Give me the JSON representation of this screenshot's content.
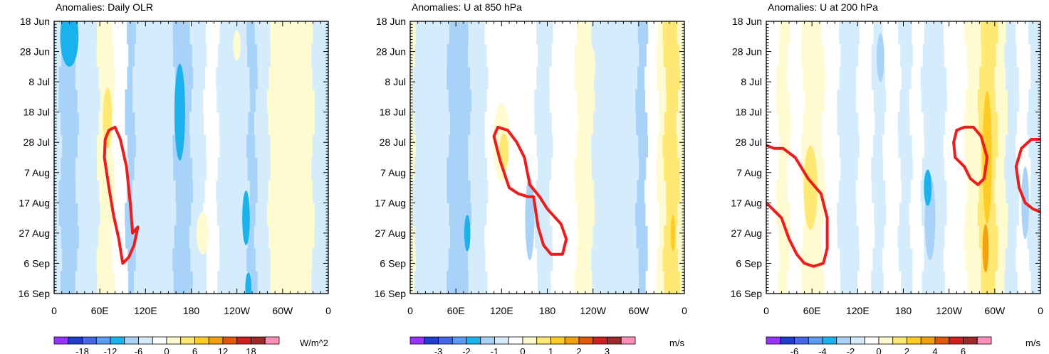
{
  "colorbar_colors": [
    "#9933ff",
    "#1f3ecf",
    "#4569e6",
    "#5b9bf2",
    "#1ab2ec",
    "#a8d2f7",
    "#d4ecfb",
    "#ffffff",
    "#fffbd0",
    "#ffe873",
    "#ffcc26",
    "#f3a10f",
    "#e3590b",
    "#cf1f1f",
    "#9c2a2a",
    "#ff8fb8"
  ],
  "contour_color": "#ee1c1c",
  "chart_data": [
    {
      "type": "heatmap",
      "title": "Anomalies: Daily OLR",
      "x_ticks": [
        "0",
        "60E",
        "120E",
        "180",
        "120W",
        "60W",
        "0"
      ],
      "y_ticks": [
        "18 Jun",
        "28 Jun",
        "8 Jul",
        "18 Jul",
        "28 Jul",
        "7 Aug",
        "17 Aug",
        "27 Aug",
        "6 Sep",
        "16 Sep"
      ],
      "x_range_deg": [
        0,
        360
      ],
      "y_range_days": [
        0,
        90
      ],
      "colorbar": {
        "units": "W/m^2",
        "labels": [
          "-18",
          "-12",
          "-6",
          "0",
          "6",
          "12",
          "18"
        ]
      },
      "bands": [
        {
          "lon": [
            0,
            8
          ],
          "level": -1
        },
        {
          "lon": [
            8,
            30
          ],
          "level": -2
        },
        {
          "lon": [
            30,
            58
          ],
          "level": -1
        },
        {
          "lon": [
            58,
            78
          ],
          "level": 1
        },
        {
          "lon": [
            78,
            95
          ],
          "level": 0
        },
        {
          "lon": [
            95,
            105
          ],
          "level": -2
        },
        {
          "lon": [
            105,
            140
          ],
          "level": -1
        },
        {
          "lon": [
            140,
            158
          ],
          "level": -1
        },
        {
          "lon": [
            158,
            180
          ],
          "level": -2
        },
        {
          "lon": [
            180,
            198
          ],
          "level": -1
        },
        {
          "lon": [
            198,
            215
          ],
          "level": 0
        },
        {
          "lon": [
            215,
            232
          ],
          "level": -1
        },
        {
          "lon": [
            232,
            255
          ],
          "level": -1
        },
        {
          "lon": [
            255,
            265
          ],
          "level": -2
        },
        {
          "lon": [
            265,
            282
          ],
          "level": -1
        },
        {
          "lon": [
            282,
            298
          ],
          "level": 1
        },
        {
          "lon": [
            298,
            340
          ],
          "level": 1
        },
        {
          "lon": [
            340,
            360
          ],
          "level": -1
        }
      ],
      "blobs": [
        {
          "lon": 20,
          "day": 5,
          "rlon": 12,
          "rday": 10,
          "level": -3
        },
        {
          "lon": 165,
          "day": 30,
          "rlon": 7,
          "rday": 16,
          "level": -3
        },
        {
          "lon": 252,
          "day": 65,
          "rlon": 5,
          "rday": 9,
          "level": -3
        },
        {
          "lon": 255,
          "day": 88,
          "rlon": 4,
          "rday": 5,
          "level": -3
        },
        {
          "lon": 70,
          "day": 32,
          "rlon": 6,
          "rday": 10,
          "level": 2
        },
        {
          "lon": 240,
          "day": 8,
          "rlon": 5,
          "rday": 5,
          "level": 1
        },
        {
          "lon": 195,
          "day": 70,
          "rlon": 8,
          "rday": 7,
          "level": 1
        }
      ],
      "contours": [
        {
          "points": [
            [
              80,
              35
            ],
            [
              87,
              39
            ],
            [
              95,
              48
            ],
            [
              100,
              60
            ],
            [
              103,
              70
            ],
            [
              110,
              68
            ],
            [
              105,
              74
            ],
            [
              98,
              78
            ],
            [
              90,
              80
            ],
            [
              85,
              72
            ],
            [
              78,
              64
            ],
            [
              72,
              55
            ],
            [
              66,
              45
            ],
            [
              67,
              39
            ],
            [
              72,
              36
            ],
            [
              80,
              35
            ]
          ]
        }
      ]
    },
    {
      "type": "heatmap",
      "title": "Anomalies: U at 850 hPa",
      "x_ticks": [
        "0",
        "60E",
        "120E",
        "180",
        "120W",
        "60W",
        "0"
      ],
      "y_ticks": [
        "18 Jun",
        "28 Jun",
        "8 Jul",
        "18 Jul",
        "28 Jul",
        "7 Aug",
        "17 Aug",
        "27 Aug",
        "6 Sep",
        "16 Sep"
      ],
      "x_range_deg": [
        0,
        360
      ],
      "y_range_days": [
        0,
        90
      ],
      "colorbar": {
        "units": "m/s",
        "labels": [
          "-3",
          "-2",
          "-1",
          "0",
          "1",
          "2",
          "3"
        ]
      },
      "bands": [
        {
          "lon": [
            0,
            5
          ],
          "level": 1
        },
        {
          "lon": [
            5,
            50
          ],
          "level": -1
        },
        {
          "lon": [
            50,
            78
          ],
          "level": -2
        },
        {
          "lon": [
            78,
            100
          ],
          "level": -1
        },
        {
          "lon": [
            100,
            165
          ],
          "level": 0
        },
        {
          "lon": [
            165,
            185
          ],
          "level": -1
        },
        {
          "lon": [
            185,
            218
          ],
          "level": 0
        },
        {
          "lon": [
            218,
            240
          ],
          "level": 1
        },
        {
          "lon": [
            240,
            262
          ],
          "level": -1
        },
        {
          "lon": [
            262,
            298
          ],
          "level": -1
        },
        {
          "lon": [
            298,
            310
          ],
          "level": -2
        },
        {
          "lon": [
            310,
            325
          ],
          "level": 0
        },
        {
          "lon": [
            325,
            334
          ],
          "level": 1
        },
        {
          "lon": [
            334,
            352
          ],
          "level": 2
        },
        {
          "lon": [
            352,
            360
          ],
          "level": 1
        }
      ],
      "blobs": [
        {
          "lon": 120,
          "day": 40,
          "rlon": 11,
          "rday": 13,
          "level": 1
        },
        {
          "lon": 123,
          "day": 43,
          "rlon": 6,
          "rday": 6,
          "level": 2
        },
        {
          "lon": 157,
          "day": 65,
          "rlon": 6,
          "rday": 14,
          "level": -2
        },
        {
          "lon": 75,
          "day": 70,
          "rlon": 4,
          "rday": 6,
          "level": -3
        },
        {
          "lon": 235,
          "day": 15,
          "rlon": 8,
          "rday": 8,
          "level": 1
        },
        {
          "lon": 345,
          "day": 70,
          "rlon": 3,
          "rday": 6,
          "level": 3
        }
      ],
      "contours": [
        {
          "points": [
            [
              115,
              35
            ],
            [
              128,
              36
            ],
            [
              140,
              40
            ],
            [
              150,
              45
            ],
            [
              157,
              54
            ],
            [
              170,
              58
            ],
            [
              180,
              62
            ],
            [
              198,
              67
            ],
            [
              205,
              72
            ],
            [
              200,
              77
            ],
            [
              185,
              77
            ],
            [
              175,
              74
            ],
            [
              168,
              68
            ],
            [
              162,
              58
            ],
            [
              155,
              58
            ],
            [
              142,
              57
            ],
            [
              130,
              55
            ],
            [
              118,
              46
            ],
            [
              110,
              38
            ],
            [
              115,
              35
            ]
          ]
        }
      ]
    },
    {
      "type": "heatmap",
      "title": "Anomalies: U at 200 hPa",
      "x_ticks": [
        "0",
        "60E",
        "120E",
        "180",
        "120W",
        "60W",
        "0"
      ],
      "y_ticks": [
        "18 Jun",
        "28 Jun",
        "8 Jul",
        "18 Jul",
        "28 Jul",
        "7 Aug",
        "17 Aug",
        "27 Aug",
        "6 Sep",
        "16 Sep"
      ],
      "x_range_deg": [
        0,
        360
      ],
      "y_range_days": [
        0,
        90
      ],
      "colorbar": {
        "units": "m/s",
        "labels": [
          "-6",
          "-4",
          "-2",
          "0",
          "2",
          "4",
          "6"
        ]
      },
      "bands": [
        {
          "lon": [
            0,
            15
          ],
          "level": 0
        },
        {
          "lon": [
            15,
            30
          ],
          "level": 1
        },
        {
          "lon": [
            30,
            48
          ],
          "level": 0
        },
        {
          "lon": [
            48,
            75
          ],
          "level": 1
        },
        {
          "lon": [
            75,
            95
          ],
          "level": 0
        },
        {
          "lon": [
            95,
            120
          ],
          "level": -1
        },
        {
          "lon": [
            120,
            140
          ],
          "level": 0
        },
        {
          "lon": [
            140,
            155
          ],
          "level": -1
        },
        {
          "lon": [
            155,
            175
          ],
          "level": 0
        },
        {
          "lon": [
            175,
            190
          ],
          "level": -1
        },
        {
          "lon": [
            190,
            205
          ],
          "level": 0
        },
        {
          "lon": [
            205,
            222
          ],
          "level": -1
        },
        {
          "lon": [
            222,
            235
          ],
          "level": -1
        },
        {
          "lon": [
            235,
            262
          ],
          "level": 0
        },
        {
          "lon": [
            262,
            280
          ],
          "level": 1
        },
        {
          "lon": [
            280,
            302
          ],
          "level": 2
        },
        {
          "lon": [
            302,
            315
          ],
          "level": 1
        },
        {
          "lon": [
            315,
            330
          ],
          "level": -1
        },
        {
          "lon": [
            330,
            345
          ],
          "level": 0
        },
        {
          "lon": [
            345,
            360
          ],
          "level": -1
        }
      ],
      "blobs": [
        {
          "lon": 58,
          "day": 55,
          "rlon": 9,
          "rday": 14,
          "level": 2
        },
        {
          "lon": 55,
          "day": 8,
          "rlon": 5,
          "rday": 6,
          "level": 1
        },
        {
          "lon": 215,
          "day": 65,
          "rlon": 7,
          "rday": 14,
          "level": -2
        },
        {
          "lon": 212,
          "day": 55,
          "rlon": 5,
          "rday": 6,
          "level": -3
        },
        {
          "lon": 150,
          "day": 12,
          "rlon": 5,
          "rday": 8,
          "level": -2
        },
        {
          "lon": 290,
          "day": 45,
          "rlon": 6,
          "rday": 22,
          "level": 3
        },
        {
          "lon": 288,
          "day": 75,
          "rlon": 4,
          "rday": 8,
          "level": 4
        },
        {
          "lon": 340,
          "day": 60,
          "rlon": 5,
          "rday": 12,
          "level": -2
        },
        {
          "lon": 268,
          "day": 42,
          "rlon": 8,
          "rday": 10,
          "level": 1
        }
      ],
      "contours": [
        {
          "points": [
            [
              0,
              41
            ],
            [
              10,
              42
            ],
            [
              22,
              42
            ],
            [
              38,
              45
            ],
            [
              55,
              52
            ],
            [
              72,
              57
            ],
            [
              80,
              65
            ],
            [
              80,
              75
            ],
            [
              75,
              80
            ],
            [
              62,
              81
            ],
            [
              50,
              80
            ],
            [
              40,
              77
            ],
            [
              30,
              72
            ],
            [
              20,
              65
            ],
            [
              8,
              62
            ],
            [
              0,
              60
            ]
          ]
        },
        {
          "points": [
            [
              260,
              35
            ],
            [
              272,
              35
            ],
            [
              282,
              38
            ],
            [
              290,
              45
            ],
            [
              286,
              52
            ],
            [
              278,
              54
            ],
            [
              268,
              52
            ],
            [
              260,
              48
            ],
            [
              248,
              45
            ],
            [
              246,
              40
            ],
            [
              250,
              36
            ],
            [
              260,
              35
            ]
          ]
        },
        {
          "points": [
            [
              360,
              39
            ],
            [
              348,
              39
            ],
            [
              335,
              42
            ],
            [
              328,
              48
            ],
            [
              332,
              55
            ],
            [
              340,
              60
            ],
            [
              350,
              62
            ],
            [
              360,
              63
            ]
          ]
        }
      ]
    }
  ]
}
